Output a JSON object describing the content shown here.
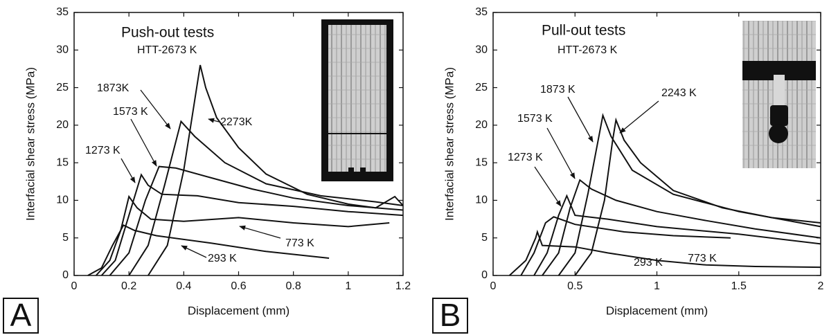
{
  "chart_data": [
    {
      "type": "line",
      "panel_label": "A",
      "title": "Push-out tests",
      "subtitle": "HTT-2673 K",
      "x_label": "Displacement (mm)",
      "y_label": "Interfacial shear stress (MPa)",
      "xlim": [
        0,
        1.2
      ],
      "xticks": [
        0,
        0.2,
        0.4,
        0.6,
        0.8,
        1,
        1.2
      ],
      "ylim": [
        0,
        35
      ],
      "yticks": [
        0,
        5,
        10,
        15,
        20,
        25,
        30,
        35
      ],
      "color": "#111111",
      "series": [
        {
          "name": "293 K",
          "x": [
            0.05,
            0.1,
            0.14,
            0.18,
            0.22,
            0.3,
            0.5,
            0.7,
            0.93
          ],
          "values": [
            0,
            1,
            4,
            6.7,
            6,
            5.3,
            4.3,
            3.2,
            2.3
          ]
        },
        {
          "name": "773 K",
          "x": [
            0.08,
            0.13,
            0.17,
            0.2,
            0.23,
            0.28,
            0.4,
            0.6,
            0.8,
            1.0,
            1.15
          ],
          "values": [
            0,
            2,
            6,
            10.5,
            9,
            7.5,
            7.2,
            7.7,
            7,
            6.5,
            7
          ]
        },
        {
          "name": "1273 K",
          "x": [
            0.1,
            0.15,
            0.2,
            0.245,
            0.27,
            0.32,
            0.45,
            0.6,
            0.8,
            1.0,
            1.2
          ],
          "values": [
            0,
            2,
            8,
            13.4,
            12,
            10.8,
            10.6,
            9.7,
            9.2,
            8.5,
            8
          ]
        },
        {
          "name": "1573 K",
          "x": [
            0.13,
            0.2,
            0.26,
            0.31,
            0.37,
            0.5,
            0.65,
            0.8,
            1.0,
            1.2
          ],
          "values": [
            0,
            3,
            10,
            14.5,
            14.3,
            13,
            11.5,
            10.3,
            9.3,
            8.7
          ]
        },
        {
          "name": "1873K",
          "x": [
            0.2,
            0.27,
            0.33,
            0.39,
            0.44,
            0.55,
            0.7,
            0.9,
            1.1,
            1.2
          ],
          "values": [
            0,
            4,
            12,
            20.5,
            18.5,
            15,
            12.2,
            10.6,
            9.8,
            9.3
          ]
        },
        {
          "name": "2273K",
          "x": [
            0.27,
            0.34,
            0.4,
            0.46,
            0.48,
            0.52,
            0.6,
            0.7,
            0.85,
            1.0,
            1.1,
            1.17,
            1.2
          ],
          "values": [
            0,
            4,
            14,
            28,
            25,
            21,
            17,
            13.5,
            10.8,
            9.5,
            9,
            10.5,
            9.3
          ]
        }
      ]
    },
    {
      "type": "line",
      "panel_label": "B",
      "title": "Pull-out tests",
      "subtitle": "HTT-2673 K",
      "x_label": "Displacement (mm)",
      "y_label": "Interfacial shear stress (MPa)",
      "xlim": [
        0,
        2
      ],
      "xticks": [
        0,
        0.5,
        1,
        1.5,
        2
      ],
      "ylim": [
        0,
        35
      ],
      "yticks": [
        0,
        5,
        10,
        15,
        20,
        25,
        30,
        35
      ],
      "color": "#111111",
      "series": [
        {
          "name": "293 K",
          "x": [
            0.1,
            0.2,
            0.26,
            0.27,
            0.3,
            0.5,
            0.7,
            1.0,
            1.3,
            1.6,
            2.0
          ],
          "values": [
            0,
            2,
            5,
            5.8,
            4,
            3.8,
            3,
            2,
            1.4,
            1.2,
            1.1
          ]
        },
        {
          "name": "773 K",
          "x": [
            0.17,
            0.25,
            0.32,
            0.37,
            0.5,
            0.8,
            1.1,
            1.45
          ],
          "values": [
            0,
            3,
            7,
            7.8,
            6.8,
            5.8,
            5.3,
            5
          ]
        },
        {
          "name": "1273 K",
          "x": [
            0.25,
            0.33,
            0.4,
            0.45,
            0.5,
            0.7,
            1.0,
            1.5,
            2.0
          ],
          "values": [
            0,
            3,
            8,
            10.6,
            8,
            7.5,
            6.5,
            5.5,
            4.2
          ]
        },
        {
          "name": "1573 K",
          "x": [
            0.3,
            0.4,
            0.47,
            0.53,
            0.6,
            0.75,
            1.0,
            1.3,
            1.6,
            2.0
          ],
          "values": [
            0,
            3,
            9,
            12.7,
            11.5,
            10,
            8.5,
            7.3,
            6.2,
            5
          ]
        },
        {
          "name": "1873 K",
          "x": [
            0.4,
            0.5,
            0.58,
            0.67,
            0.72,
            0.85,
            1.1,
            1.5,
            2.0
          ],
          "values": [
            0,
            3,
            11,
            21.3,
            18.5,
            14,
            10.8,
            8.5,
            6.5
          ]
        },
        {
          "name": "2243 K",
          "x": [
            0.5,
            0.6,
            0.68,
            0.73,
            0.75,
            0.8,
            0.9,
            1.1,
            1.4,
            1.7,
            2.0
          ],
          "values": [
            0,
            3,
            10,
            18,
            20.7,
            18,
            15,
            11.3,
            9,
            7.7,
            7
          ]
        }
      ]
    }
  ]
}
